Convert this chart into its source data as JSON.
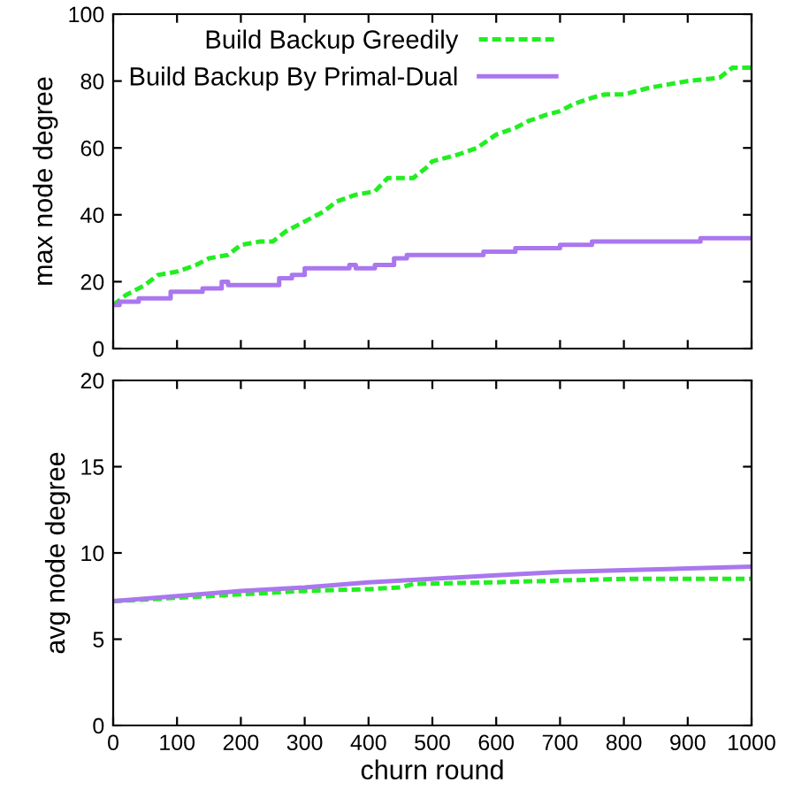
{
  "chart_data": [
    {
      "type": "line",
      "ylabel": "max node degree",
      "xlim": [
        0,
        1000
      ],
      "xticks": [
        {
          "value": 0,
          "label": null
        },
        {
          "value": 100,
          "label": null
        },
        {
          "value": 200,
          "label": null
        },
        {
          "value": 300,
          "label": null
        },
        {
          "value": 400,
          "label": null
        },
        {
          "value": 500,
          "label": null
        },
        {
          "value": 600,
          "label": null
        },
        {
          "value": 700,
          "label": null
        },
        {
          "value": 800,
          "label": null
        },
        {
          "value": 900,
          "label": null
        },
        {
          "value": 1000,
          "label": null
        }
      ],
      "ylim": [
        0,
        100
      ],
      "yticks": [
        0,
        20,
        40,
        60,
        80,
        100
      ],
      "tick_labels": "y",
      "legend": "top left",
      "grid": false,
      "series": [
        {
          "name": "Build Backup Greedily",
          "color": "#22ee22",
          "line_style": "dashed",
          "x": [
            0,
            20,
            50,
            70,
            100,
            130,
            150,
            180,
            200,
            230,
            250,
            270,
            300,
            330,
            350,
            380,
            410,
            430,
            470,
            490,
            500,
            540,
            570,
            600,
            630,
            650,
            680,
            700,
            720,
            750,
            770,
            800,
            840,
            870,
            900,
            950,
            970,
            1000
          ],
          "values": [
            13,
            16,
            19,
            22,
            23,
            25,
            27,
            28,
            31,
            32,
            32,
            35,
            38,
            41,
            44,
            46,
            47,
            51,
            51,
            54,
            56,
            58,
            60,
            64,
            66,
            68,
            70,
            71,
            73,
            75,
            76,
            76,
            78,
            79,
            80,
            81,
            84,
            84
          ]
        },
        {
          "name": "Build Backup By Primal-Dual",
          "color": "#aa77ee",
          "type": "step",
          "line_style": "solid",
          "x": [
            0,
            10,
            40,
            90,
            140,
            170,
            180,
            250,
            260,
            280,
            300,
            370,
            380,
            410,
            440,
            460,
            580,
            630,
            700,
            750,
            920,
            1000
          ],
          "values": [
            13,
            14,
            15,
            17,
            18,
            20,
            19,
            19,
            21,
            22,
            24,
            25,
            24,
            25,
            27,
            28,
            29,
            30,
            31,
            32,
            33,
            33
          ]
        }
      ]
    },
    {
      "type": "line",
      "xlabel": "churn round",
      "ylabel": "avg node degree",
      "xlim": [
        0,
        1000
      ],
      "xticks": [
        0,
        100,
        200,
        300,
        400,
        500,
        600,
        700,
        800,
        900,
        1000
      ],
      "ylim": [
        0,
        20
      ],
      "yticks": [
        0,
        5,
        10,
        15,
        20
      ],
      "grid": false,
      "series": [
        {
          "color": "#22ee22",
          "line_style": "dashed",
          "x": [
            0,
            100,
            200,
            300,
            400,
            450,
            470,
            600,
            700,
            800,
            1000
          ],
          "values": [
            7.2,
            7.4,
            7.6,
            7.8,
            7.9,
            8.0,
            8.2,
            8.3,
            8.4,
            8.5,
            8.5
          ]
        },
        {
          "color": "#aa77ee",
          "line_style": "solid",
          "x": [
            0,
            100,
            200,
            300,
            400,
            500,
            600,
            700,
            800,
            900,
            1000
          ],
          "values": [
            7.2,
            7.5,
            7.8,
            8.0,
            8.3,
            8.5,
            8.7,
            8.9,
            9.0,
            9.1,
            9.2
          ]
        }
      ]
    }
  ]
}
